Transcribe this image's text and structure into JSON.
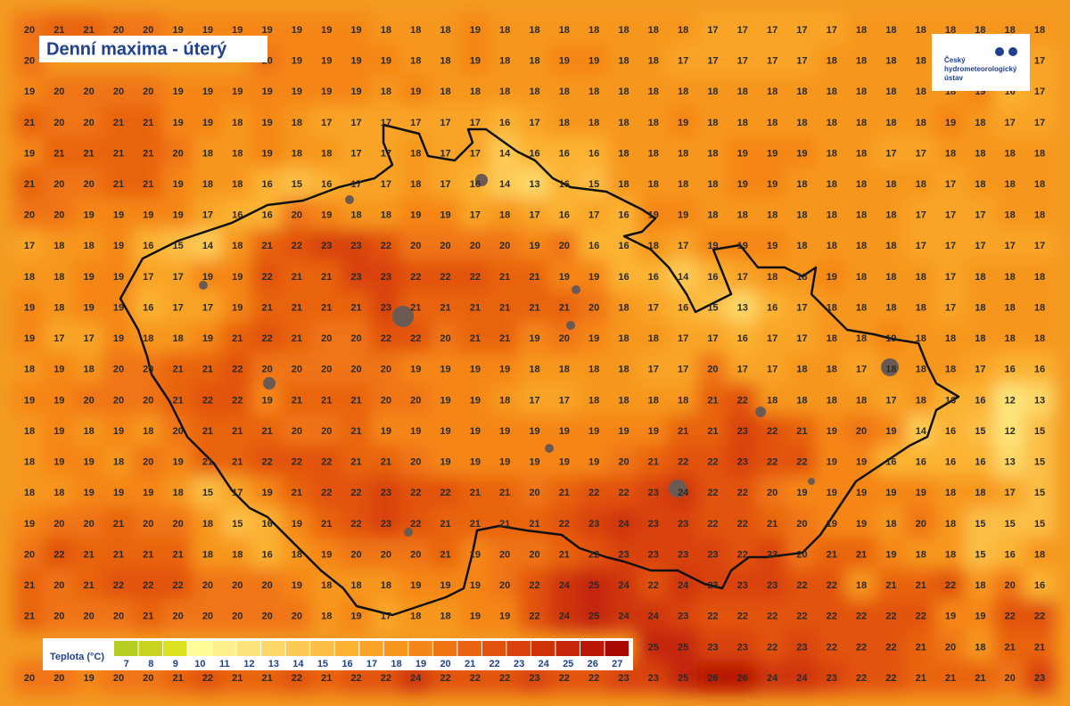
{
  "title": "Denní maxima - úterý",
  "logo": {
    "lines": [
      "Český",
      "hydrometeorologický",
      "ústav"
    ]
  },
  "grid": {
    "rows": [
      [
        20,
        21,
        21,
        20,
        20,
        19,
        19,
        19,
        19,
        19,
        19,
        19,
        18,
        18,
        18,
        19,
        18,
        18,
        18,
        18,
        18,
        18,
        18,
        17,
        17,
        17,
        17,
        17,
        18,
        18,
        18,
        18,
        18,
        18,
        18
      ],
      [
        20,
        null,
        null,
        null,
        null,
        null,
        null,
        null,
        20,
        19,
        19,
        19,
        19,
        18,
        18,
        19,
        18,
        18,
        19,
        19,
        18,
        18,
        17,
        17,
        17,
        17,
        17,
        18,
        18,
        18,
        18,
        null,
        null,
        null,
        17
      ],
      [
        19,
        20,
        20,
        20,
        20,
        19,
        19,
        19,
        19,
        19,
        19,
        19,
        18,
        19,
        18,
        18,
        18,
        18,
        18,
        18,
        18,
        18,
        18,
        18,
        18,
        18,
        18,
        18,
        18,
        18,
        18,
        18,
        19,
        16,
        17
      ],
      [
        21,
        20,
        20,
        21,
        21,
        19,
        19,
        18,
        19,
        18,
        17,
        17,
        17,
        17,
        17,
        17,
        16,
        17,
        18,
        18,
        18,
        18,
        19,
        18,
        18,
        18,
        18,
        18,
        18,
        18,
        18,
        19,
        18,
        17,
        17
      ],
      [
        19,
        21,
        21,
        21,
        21,
        20,
        18,
        18,
        19,
        18,
        18,
        17,
        17,
        18,
        17,
        17,
        14,
        16,
        16,
        16,
        18,
        18,
        18,
        18,
        19,
        19,
        19,
        18,
        18,
        17,
        17,
        18,
        18,
        18,
        18
      ],
      [
        21,
        20,
        20,
        21,
        21,
        19,
        18,
        18,
        16,
        15,
        16,
        17,
        17,
        18,
        17,
        16,
        14,
        13,
        16,
        15,
        18,
        18,
        18,
        18,
        19,
        19,
        18,
        18,
        18,
        18,
        18,
        17,
        18,
        18,
        18
      ],
      [
        20,
        20,
        19,
        19,
        19,
        19,
        17,
        16,
        16,
        20,
        19,
        18,
        18,
        19,
        19,
        17,
        18,
        17,
        16,
        17,
        16,
        19,
        19,
        18,
        18,
        18,
        18,
        18,
        18,
        18,
        17,
        17,
        17,
        18,
        18
      ],
      [
        17,
        18,
        18,
        19,
        16,
        15,
        14,
        18,
        21,
        22,
        23,
        23,
        22,
        20,
        20,
        20,
        20,
        19,
        20,
        16,
        16,
        18,
        17,
        19,
        19,
        19,
        18,
        18,
        18,
        18,
        17,
        17,
        17,
        17,
        17
      ],
      [
        18,
        18,
        19,
        19,
        17,
        17,
        19,
        19,
        22,
        21,
        21,
        23,
        23,
        22,
        22,
        22,
        21,
        21,
        19,
        19,
        16,
        16,
        14,
        16,
        17,
        18,
        18,
        19,
        18,
        18,
        18,
        17,
        18,
        18,
        18
      ],
      [
        19,
        18,
        19,
        19,
        16,
        17,
        17,
        19,
        21,
        21,
        21,
        21,
        23,
        21,
        21,
        21,
        21,
        21,
        21,
        20,
        18,
        17,
        16,
        15,
        13,
        16,
        17,
        18,
        18,
        18,
        18,
        17,
        18,
        18,
        18
      ],
      [
        19,
        17,
        17,
        19,
        18,
        18,
        19,
        21,
        22,
        21,
        20,
        20,
        22,
        22,
        20,
        21,
        21,
        19,
        20,
        19,
        18,
        18,
        17,
        17,
        16,
        17,
        17,
        18,
        18,
        19,
        18,
        18,
        18,
        18,
        18
      ],
      [
        18,
        19,
        18,
        20,
        20,
        21,
        21,
        22,
        20,
        20,
        20,
        20,
        20,
        19,
        19,
        19,
        19,
        18,
        18,
        18,
        18,
        17,
        17,
        20,
        17,
        17,
        18,
        18,
        17,
        18,
        18,
        18,
        17,
        16,
        16
      ],
      [
        19,
        19,
        20,
        20,
        20,
        21,
        22,
        22,
        19,
        21,
        21,
        21,
        20,
        20,
        19,
        19,
        18,
        17,
        17,
        18,
        18,
        18,
        18,
        21,
        22,
        18,
        18,
        18,
        18,
        17,
        18,
        16,
        16,
        12,
        13
      ],
      [
        18,
        19,
        18,
        19,
        18,
        20,
        21,
        21,
        21,
        20,
        20,
        21,
        19,
        19,
        19,
        19,
        19,
        19,
        19,
        19,
        19,
        19,
        21,
        21,
        23,
        22,
        21,
        19,
        20,
        19,
        14,
        16,
        15,
        12,
        15
      ],
      [
        18,
        19,
        19,
        18,
        20,
        19,
        21,
        21,
        22,
        22,
        22,
        21,
        21,
        20,
        19,
        19,
        19,
        19,
        19,
        19,
        20,
        21,
        22,
        22,
        23,
        22,
        22,
        19,
        19,
        16,
        16,
        16,
        16,
        13,
        15
      ],
      [
        18,
        18,
        19,
        19,
        19,
        18,
        15,
        17,
        19,
        21,
        22,
        22,
        23,
        22,
        22,
        21,
        21,
        20,
        21,
        22,
        22,
        23,
        24,
        22,
        22,
        20,
        19,
        19,
        19,
        19,
        19,
        18,
        18,
        17,
        15
      ],
      [
        19,
        20,
        20,
        21,
        20,
        20,
        18,
        15,
        16,
        19,
        21,
        22,
        23,
        22,
        21,
        21,
        21,
        21,
        22,
        23,
        24,
        23,
        23,
        22,
        22,
        21,
        20,
        19,
        19,
        18,
        20,
        18,
        15,
        15,
        15
      ],
      [
        20,
        22,
        21,
        21,
        21,
        21,
        18,
        18,
        16,
        18,
        19,
        20,
        20,
        20,
        21,
        19,
        20,
        20,
        21,
        22,
        23,
        23,
        23,
        23,
        22,
        23,
        20,
        21,
        21,
        19,
        18,
        18,
        15,
        16,
        18
      ],
      [
        21,
        20,
        21,
        22,
        22,
        22,
        20,
        20,
        20,
        19,
        18,
        18,
        18,
        19,
        19,
        19,
        20,
        22,
        24,
        25,
        24,
        22,
        24,
        23,
        23,
        23,
        22,
        22,
        18,
        21,
        21,
        22,
        18,
        20,
        16
      ],
      [
        21,
        20,
        20,
        20,
        21,
        20,
        20,
        20,
        20,
        20,
        18,
        19,
        17,
        18,
        18,
        19,
        19,
        22,
        24,
        25,
        24,
        24,
        23,
        22,
        22,
        22,
        22,
        22,
        22,
        22,
        22,
        19,
        19,
        22,
        22
      ],
      [
        null,
        null,
        null,
        null,
        null,
        null,
        null,
        null,
        null,
        null,
        null,
        null,
        null,
        null,
        null,
        null,
        null,
        null,
        null,
        null,
        null,
        25,
        25,
        23,
        23,
        22,
        23,
        22,
        22,
        22,
        21,
        20,
        18,
        21,
        21
      ],
      [
        20,
        20,
        19,
        20,
        20,
        21,
        22,
        21,
        21,
        22,
        21,
        22,
        22,
        24,
        22,
        22,
        22,
        23,
        22,
        22,
        23,
        23,
        25,
        26,
        26,
        24,
        24,
        23,
        22,
        22,
        21,
        21,
        21,
        20,
        23
      ]
    ]
  },
  "legend": {
    "label": "Teplota (°C)",
    "items": [
      {
        "value": 7,
        "color": "#b4cd1e"
      },
      {
        "value": 8,
        "color": "#c8d41e"
      },
      {
        "value": 9,
        "color": "#dde01e"
      },
      {
        "value": 10,
        "color": "#fffb96"
      },
      {
        "value": 11,
        "color": "#fef08a"
      },
      {
        "value": 12,
        "color": "#fde47a"
      },
      {
        "value": 13,
        "color": "#fdd868"
      },
      {
        "value": 14,
        "color": "#fdcb55"
      },
      {
        "value": 15,
        "color": "#fcbe44"
      },
      {
        "value": 16,
        "color": "#fbb233"
      },
      {
        "value": 17,
        "color": "#f9a428"
      },
      {
        "value": 18,
        "color": "#f7961f"
      },
      {
        "value": 19,
        "color": "#f58619"
      },
      {
        "value": 20,
        "color": "#f07414"
      },
      {
        "value": 21,
        "color": "#e96310"
      },
      {
        "value": 22,
        "color": "#e2530d"
      },
      {
        "value": 23,
        "color": "#d9430b"
      },
      {
        "value": 24,
        "color": "#cf3409"
      },
      {
        "value": 25,
        "color": "#c42607"
      },
      {
        "value": 26,
        "color": "#b81805"
      },
      {
        "value": 27,
        "color": "#aa0a03"
      }
    ]
  }
}
